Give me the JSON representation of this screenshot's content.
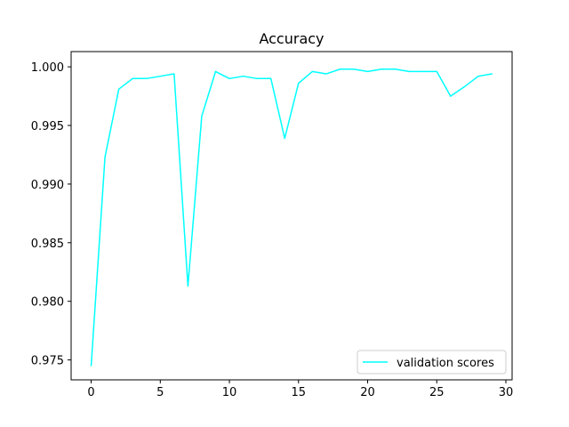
{
  "chart_data": {
    "type": "line",
    "title": "Accuracy",
    "xlabel": "",
    "ylabel": "",
    "xlim": [
      -1.45,
      30.45
    ],
    "ylim": [
      0.9733,
      1.0013
    ],
    "x_ticks": [
      0,
      5,
      10,
      15,
      20,
      25,
      30
    ],
    "y_ticks": [
      0.975,
      0.98,
      0.985,
      0.99,
      0.995,
      1.0
    ],
    "x_tick_labels": [
      "0",
      "5",
      "10",
      "15",
      "20",
      "25",
      "30"
    ],
    "y_tick_labels": [
      "0.975",
      "0.980",
      "0.985",
      "0.990",
      "0.995",
      "1.000"
    ],
    "grid": false,
    "legend_position": "lower right",
    "series": [
      {
        "name": "validation scores",
        "color": "#00ffff",
        "x": [
          0,
          1,
          2,
          3,
          4,
          5,
          6,
          7,
          8,
          9,
          10,
          11,
          12,
          13,
          14,
          15,
          16,
          17,
          18,
          19,
          20,
          21,
          22,
          23,
          24,
          25,
          26,
          27,
          28,
          29
        ],
        "values": [
          0.9745,
          0.9923,
          0.9981,
          0.999,
          0.999,
          0.9992,
          0.9994,
          0.9813,
          0.9958,
          0.9996,
          0.999,
          0.9992,
          0.999,
          0.999,
          0.9939,
          0.9986,
          0.9996,
          0.9994,
          0.9998,
          0.9998,
          0.9996,
          0.9998,
          0.9998,
          0.9996,
          0.9996,
          0.9996,
          0.9975,
          0.9983,
          0.9992,
          0.9994
        ]
      }
    ]
  }
}
